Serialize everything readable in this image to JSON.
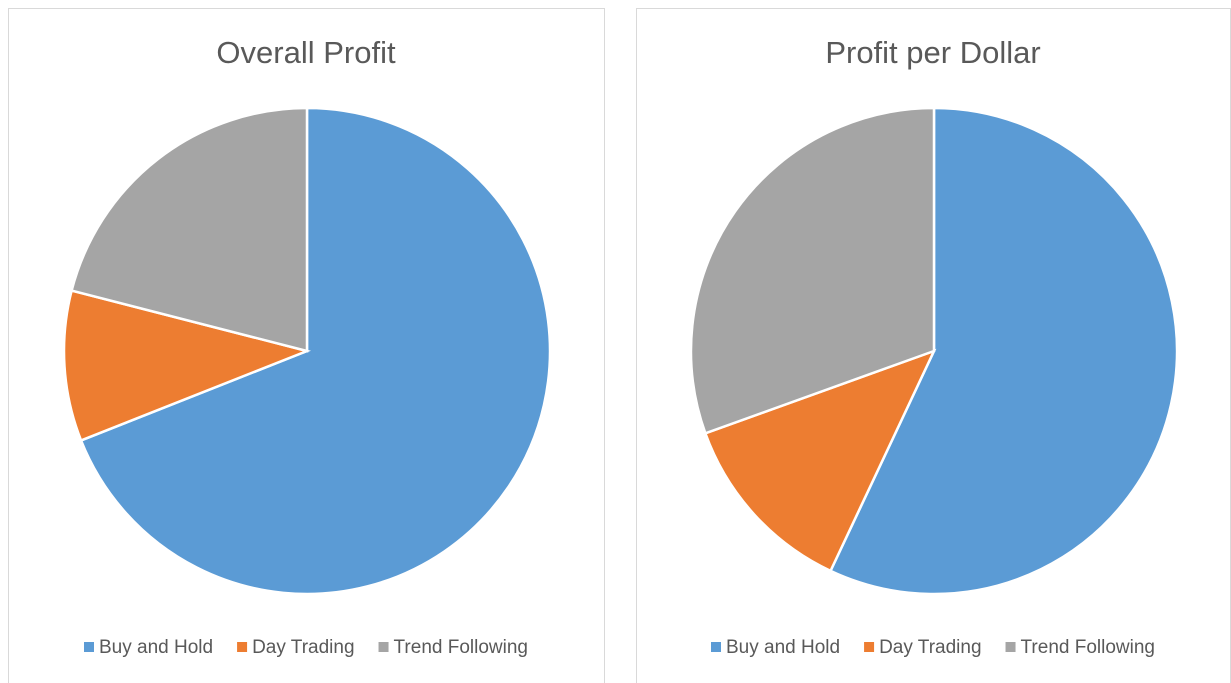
{
  "chart_data": [
    {
      "type": "pie",
      "title": "Overall Profit",
      "categories": [
        "Buy and Hold",
        "Day Trading",
        "Trend Following"
      ],
      "values": [
        69,
        10,
        21
      ],
      "colors": [
        "#5b9bd5",
        "#ed7d31",
        "#a5a5a5"
      ]
    },
    {
      "type": "pie",
      "title": "Profit per Dollar",
      "categories": [
        "Buy and Hold",
        "Day Trading",
        "Trend Following"
      ],
      "values": [
        57,
        12.5,
        30.5
      ],
      "colors": [
        "#5b9bd5",
        "#ed7d31",
        "#a5a5a5"
      ]
    }
  ]
}
